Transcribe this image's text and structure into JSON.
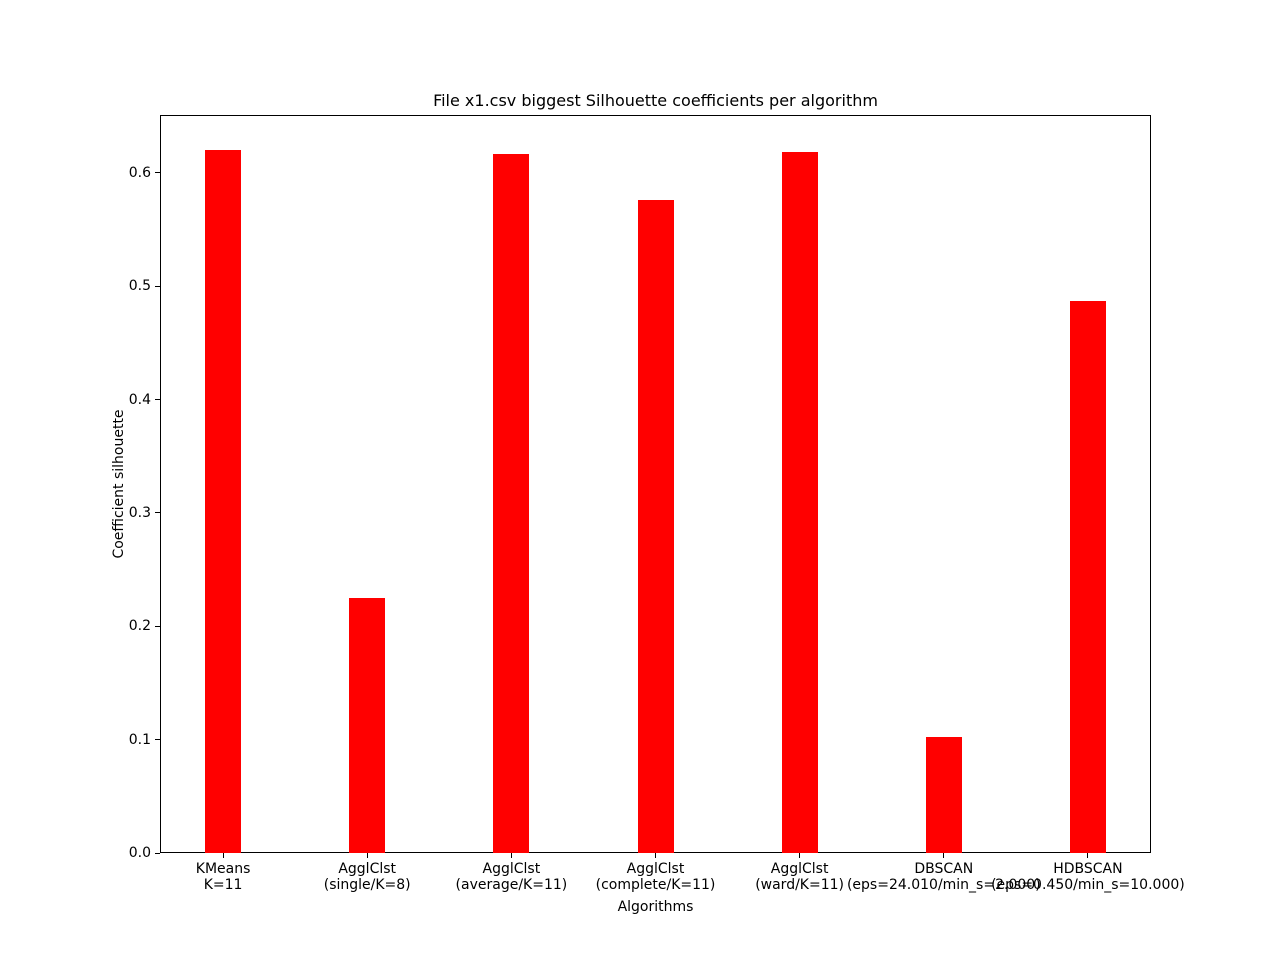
{
  "figure": {
    "background_color": "#ffffff",
    "text_color": "#000000"
  },
  "chart_data": {
    "type": "bar",
    "title": "File x1.csv biggest Silhouette coefficients per algorithm",
    "xlabel": "Algorithms",
    "ylabel": "Coefficient silhouette",
    "categories": [
      "KMeans\nK=11",
      "AgglClst\n(single/K=8)",
      "AgglClst\n(average/K=11)",
      "AgglClst\n(complete/K=11)",
      "AgglClst\n(ward/K=11)",
      "DBSCAN\n(eps=24.010/min_s=2.000)",
      "HDBSCAN\n(eps=0.450/min_s=10.000)"
    ],
    "values": [
      0.62,
      0.225,
      0.617,
      0.576,
      0.618,
      0.102,
      0.487
    ],
    "bar_color": "#ff0000",
    "bar_width": 0.25,
    "x_positions": [
      0,
      1,
      2,
      3,
      4,
      5,
      6
    ],
    "xlim": [
      -0.4375,
      6.4375
    ],
    "ylim": [
      0.0,
      0.651
    ],
    "yticks": [
      0.0,
      0.1,
      0.2,
      0.3,
      0.4,
      0.5,
      0.6
    ],
    "ytick_decimals": 1,
    "grid": false,
    "legend": null
  }
}
